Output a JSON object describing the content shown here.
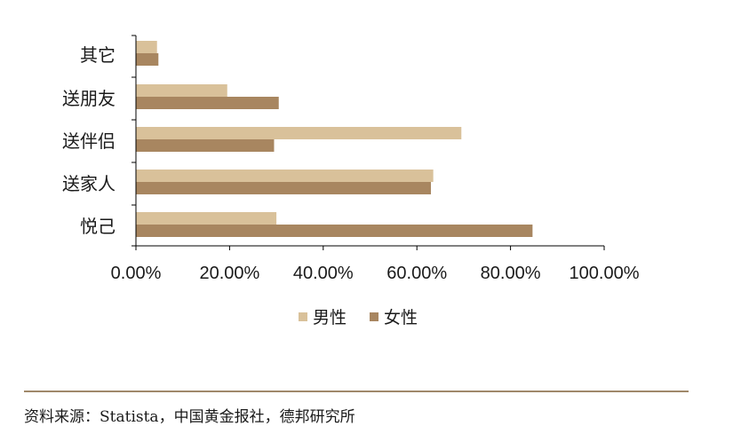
{
  "chart_data": {
    "type": "bar",
    "orientation": "horizontal",
    "categories": [
      "悦己",
      "送家人",
      "送伴侣",
      "送朋友",
      "其它"
    ],
    "series": [
      {
        "name": "男性",
        "color": "#d9c19a",
        "values": [
          30,
          63.5,
          69.5,
          19.5,
          4.5
        ]
      },
      {
        "name": "女性",
        "color": "#a88660",
        "values": [
          84.7,
          63,
          29.5,
          30.5,
          4.8
        ]
      }
    ],
    "xlim": [
      0,
      100
    ],
    "xticks": [
      "0.00%",
      "20.00%",
      "40.00%",
      "60.00%",
      "80.00%",
      "100.00%"
    ],
    "legend_position": "bottom",
    "grid": false
  },
  "source": {
    "text": "资料来源：Statista，中国黄金报社，德邦研究所"
  }
}
